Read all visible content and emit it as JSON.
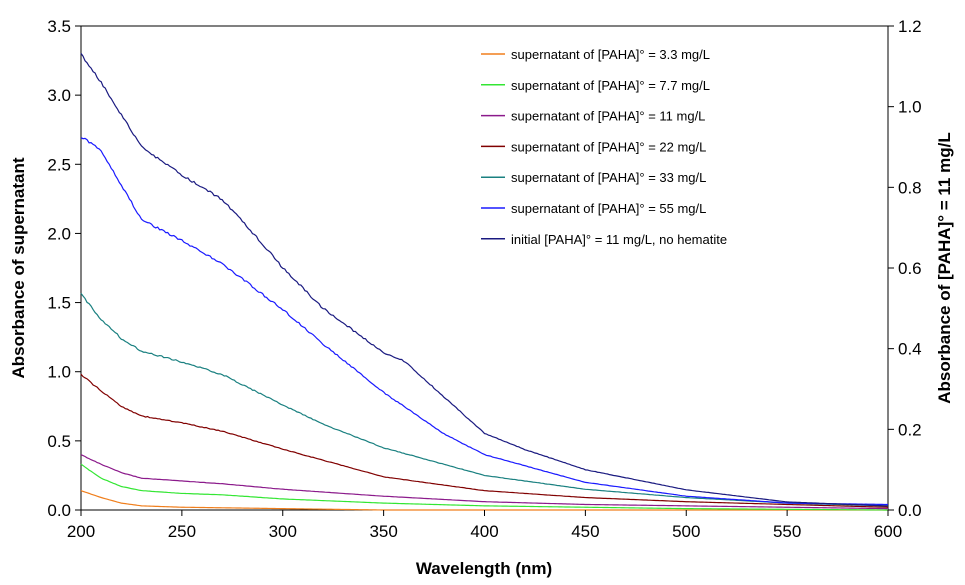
{
  "chart_data": {
    "type": "line",
    "title": "",
    "xlabel": "Wavelength (nm)",
    "ylabel": "Absorbance of supernatant",
    "y2label": "Absorbance of [PAHA]° = 11 mg/L",
    "xlim": [
      200,
      600
    ],
    "ylim": [
      0,
      3.5
    ],
    "y2lim": [
      0,
      1.2
    ],
    "xticks": [
      "200",
      "250",
      "300",
      "350",
      "400",
      "450",
      "500",
      "550",
      "600"
    ],
    "yticks": [
      "0.0",
      "0.5",
      "1.0",
      "1.5",
      "2.0",
      "2.5",
      "3.0",
      "3.5"
    ],
    "y2ticks": [
      "0.0",
      "0.2",
      "0.4",
      "0.6",
      "0.8",
      "1.0",
      "1.2"
    ],
    "grid": false,
    "legend_position": "top-right",
    "series": [
      {
        "name": "supernatant of [PAHA]° = 3.3 mg/L",
        "color": "#f07f1d",
        "axis": "left",
        "points": [
          [
            200,
            0.14
          ],
          [
            210,
            0.09
          ],
          [
            220,
            0.05
          ],
          [
            230,
            0.03
          ],
          [
            250,
            0.02
          ],
          [
            300,
            0.01
          ],
          [
            350,
            0.0
          ],
          [
            600,
            0.0
          ]
        ]
      },
      {
        "name": "supernatant of [PAHA]° = 7.7 mg/L",
        "color": "#33e633",
        "axis": "left",
        "points": [
          [
            200,
            0.33
          ],
          [
            210,
            0.23
          ],
          [
            220,
            0.17
          ],
          [
            230,
            0.14
          ],
          [
            250,
            0.12
          ],
          [
            270,
            0.11
          ],
          [
            300,
            0.08
          ],
          [
            350,
            0.05
          ],
          [
            400,
            0.03
          ],
          [
            450,
            0.02
          ],
          [
            500,
            0.01
          ],
          [
            600,
            0.0
          ]
        ]
      },
      {
        "name": "supernatant of [PAHA]° = 11 mg/L",
        "color": "#8b1a8b",
        "axis": "left",
        "points": [
          [
            200,
            0.4
          ],
          [
            210,
            0.33
          ],
          [
            220,
            0.27
          ],
          [
            230,
            0.23
          ],
          [
            250,
            0.21
          ],
          [
            270,
            0.19
          ],
          [
            300,
            0.15
          ],
          [
            350,
            0.1
          ],
          [
            400,
            0.06
          ],
          [
            450,
            0.04
          ],
          [
            500,
            0.03
          ],
          [
            550,
            0.02
          ],
          [
            600,
            0.01
          ]
        ]
      },
      {
        "name": "supernatant of [PAHA]° = 22 mg/L",
        "color": "#800000",
        "axis": "left",
        "points": [
          [
            200,
            0.98
          ],
          [
            210,
            0.86
          ],
          [
            220,
            0.75
          ],
          [
            230,
            0.68
          ],
          [
            250,
            0.63
          ],
          [
            270,
            0.57
          ],
          [
            300,
            0.44
          ],
          [
            320,
            0.36
          ],
          [
            350,
            0.24
          ],
          [
            400,
            0.14
          ],
          [
            450,
            0.09
          ],
          [
            500,
            0.06
          ],
          [
            550,
            0.04
          ],
          [
            600,
            0.02
          ]
        ]
      },
      {
        "name": "supernatant of [PAHA]° = 33 mg/L",
        "color": "#1a8080",
        "axis": "left",
        "points": [
          [
            200,
            1.56
          ],
          [
            210,
            1.38
          ],
          [
            220,
            1.24
          ],
          [
            230,
            1.15
          ],
          [
            250,
            1.07
          ],
          [
            270,
            0.98
          ],
          [
            300,
            0.76
          ],
          [
            320,
            0.62
          ],
          [
            350,
            0.45
          ],
          [
            400,
            0.25
          ],
          [
            450,
            0.15
          ],
          [
            500,
            0.09
          ],
          [
            550,
            0.05
          ],
          [
            600,
            0.03
          ]
        ]
      },
      {
        "name": "supernatant of [PAHA]° = 55 mg/L",
        "color": "#1a1aff",
        "axis": "left",
        "points": [
          [
            200,
            2.7
          ],
          [
            210,
            2.6
          ],
          [
            220,
            2.35
          ],
          [
            230,
            2.1
          ],
          [
            250,
            1.95
          ],
          [
            270,
            1.78
          ],
          [
            300,
            1.45
          ],
          [
            320,
            1.2
          ],
          [
            350,
            0.85
          ],
          [
            380,
            0.55
          ],
          [
            400,
            0.4
          ],
          [
            450,
            0.2
          ],
          [
            500,
            0.1
          ],
          [
            550,
            0.05
          ],
          [
            600,
            0.04
          ]
        ]
      },
      {
        "name": "initial [PAHA]° = 11 mg/L, no hematite",
        "color": "#1a1a80",
        "axis": "right",
        "points": [
          [
            200,
            1.13
          ],
          [
            210,
            1.06
          ],
          [
            220,
            0.98
          ],
          [
            230,
            0.9
          ],
          [
            250,
            0.83
          ],
          [
            270,
            0.77
          ],
          [
            290,
            0.66
          ],
          [
            300,
            0.6
          ],
          [
            320,
            0.5
          ],
          [
            350,
            0.39
          ],
          [
            360,
            0.37
          ],
          [
            380,
            0.28
          ],
          [
            400,
            0.19
          ],
          [
            420,
            0.15
          ],
          [
            450,
            0.1
          ],
          [
            480,
            0.07
          ],
          [
            500,
            0.05
          ],
          [
            550,
            0.02
          ],
          [
            600,
            0.01
          ]
        ]
      }
    ]
  }
}
